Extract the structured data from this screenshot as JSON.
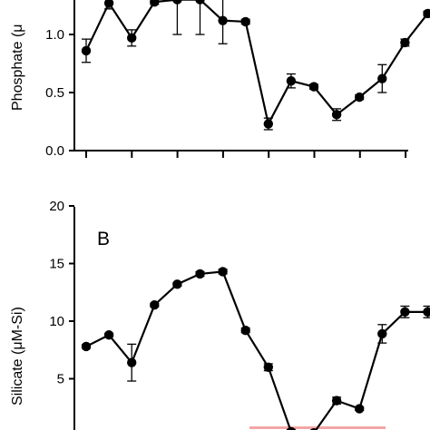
{
  "chart_data": [
    {
      "type": "line",
      "panel_label": "",
      "ylabel": "Phosphate (μ",
      "xlabel": "",
      "ylim": [
        0,
        1.5
      ],
      "yticks": [
        0.0,
        0.5,
        1.0
      ],
      "ytick_labels": [
        "0.0",
        "0.5",
        "1.0"
      ],
      "x": [
        1,
        2,
        3,
        4,
        5,
        6,
        7,
        8,
        9,
        10,
        11,
        12,
        13,
        14,
        15,
        16,
        17
      ],
      "series": [
        {
          "values": [
            0.86,
            1.27,
            0.97,
            1.28,
            1.3,
            1.3,
            1.12,
            1.11,
            0.23,
            0.6,
            0.55,
            0.31,
            0.46,
            0.62,
            0.93,
            1.18
          ],
          "x": [
            1,
            2,
            3,
            4,
            5,
            6,
            7,
            8,
            9,
            10,
            11,
            12,
            13,
            14,
            15,
            16
          ],
          "errors": [
            0.1,
            0.05,
            0.07,
            0.02,
            0.3,
            0.3,
            0.2,
            0.02,
            0.05,
            0.06,
            0.02,
            0.05,
            0.02,
            0.12,
            0.03,
            0.02
          ]
        }
      ],
      "grid": false,
      "color": "#000000"
    },
    {
      "type": "line",
      "panel_label": "B",
      "ylabel": "Silicate (μM-Si)",
      "xlabel": "",
      "ylim": [
        0,
        20
      ],
      "yticks": [
        5,
        10,
        15,
        20
      ],
      "ytick_labels": [
        "5",
        "10",
        "15",
        "20"
      ],
      "series": [
        {
          "x": [
            1,
            2,
            3,
            4,
            5,
            6,
            7,
            8,
            9,
            10,
            11,
            12,
            13,
            14,
            15,
            16
          ],
          "values": [
            7.8,
            8.8,
            6.4,
            11.4,
            13.2,
            14.1,
            14.3,
            9.2,
            6.0,
            0.4,
            0.3,
            3.1,
            2.4,
            8.9,
            10.8,
            10.8
          ],
          "errors": [
            0.15,
            0.15,
            1.6,
            0.15,
            0.15,
            0.2,
            0.2,
            0.2,
            0.3,
            0.2,
            0.2,
            0.3,
            0.15,
            0.8,
            0.5,
            0.5
          ]
        }
      ],
      "grid": false,
      "highlight_band_color": "#f4a6a6",
      "color": "#000000"
    }
  ]
}
